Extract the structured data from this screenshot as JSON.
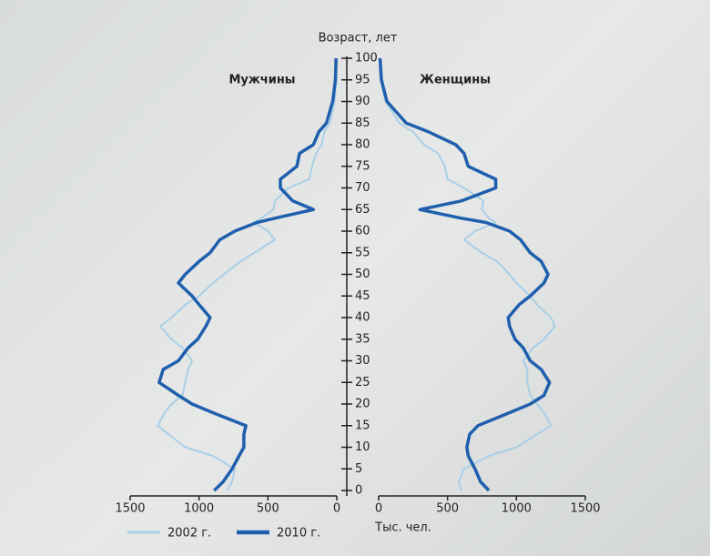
{
  "chart_data": {
    "type": "population_pyramid",
    "ylabel": "Возраст, лет",
    "xlabel": "Тыс. чел.",
    "left_label": "Мужчины",
    "right_label": "Женщины",
    "ylim": [
      0,
      100
    ],
    "yticks": [
      0,
      5,
      10,
      15,
      20,
      25,
      30,
      35,
      40,
      45,
      50,
      55,
      60,
      65,
      70,
      75,
      80,
      85,
      90,
      95,
      100
    ],
    "xlim": [
      0,
      1500
    ],
    "xticks": [
      0,
      500,
      1000,
      1500
    ],
    "ages": [
      0,
      2,
      5,
      8,
      10,
      13,
      15,
      18,
      20,
      22,
      25,
      28,
      30,
      33,
      35,
      38,
      40,
      43,
      45,
      48,
      50,
      53,
      55,
      58,
      60,
      62,
      63,
      65,
      67,
      70,
      72,
      75,
      78,
      80,
      83,
      85,
      90,
      95,
      100
    ],
    "series": [
      {
        "name": "2002 г.",
        "color": "#a9cfe6",
        "men": [
          800,
          760,
          740,
          900,
          1100,
          1220,
          1300,
          1250,
          1200,
          1120,
          1100,
          1080,
          1050,
          1120,
          1200,
          1280,
          1200,
          1100,
          1000,
          900,
          820,
          700,
          600,
          450,
          500,
          600,
          550,
          460,
          450,
          350,
          200,
          180,
          150,
          110,
          90,
          50,
          15,
          5,
          2
        ],
        "women": [
          600,
          580,
          620,
          800,
          1000,
          1150,
          1250,
          1200,
          1150,
          1100,
          1080,
          1080,
          1050,
          1120,
          1200,
          1280,
          1250,
          1150,
          1100,
          1000,
          950,
          860,
          750,
          620,
          700,
          850,
          800,
          750,
          760,
          620,
          500,
          480,
          430,
          330,
          250,
          150,
          50,
          15,
          5
        ]
      },
      {
        "name": "2010 г.",
        "color": "#1f5fae",
        "men": [
          890,
          825,
          760,
          710,
          675,
          675,
          660,
          900,
          1050,
          1150,
          1290,
          1260,
          1150,
          1080,
          1010,
          950,
          920,
          1000,
          1050,
          1150,
          1100,
          1000,
          920,
          850,
          740,
          580,
          450,
          170,
          320,
          410,
          410,
          290,
          270,
          170,
          130,
          75,
          30,
          10,
          5
        ],
        "women": [
          800,
          740,
          700,
          650,
          640,
          660,
          720,
          950,
          1100,
          1200,
          1240,
          1180,
          1100,
          1050,
          990,
          950,
          940,
          1020,
          1100,
          1200,
          1230,
          1180,
          1100,
          1030,
          950,
          780,
          600,
          300,
          600,
          850,
          850,
          650,
          620,
          560,
          360,
          200,
          60,
          20,
          10
        ]
      }
    ]
  }
}
